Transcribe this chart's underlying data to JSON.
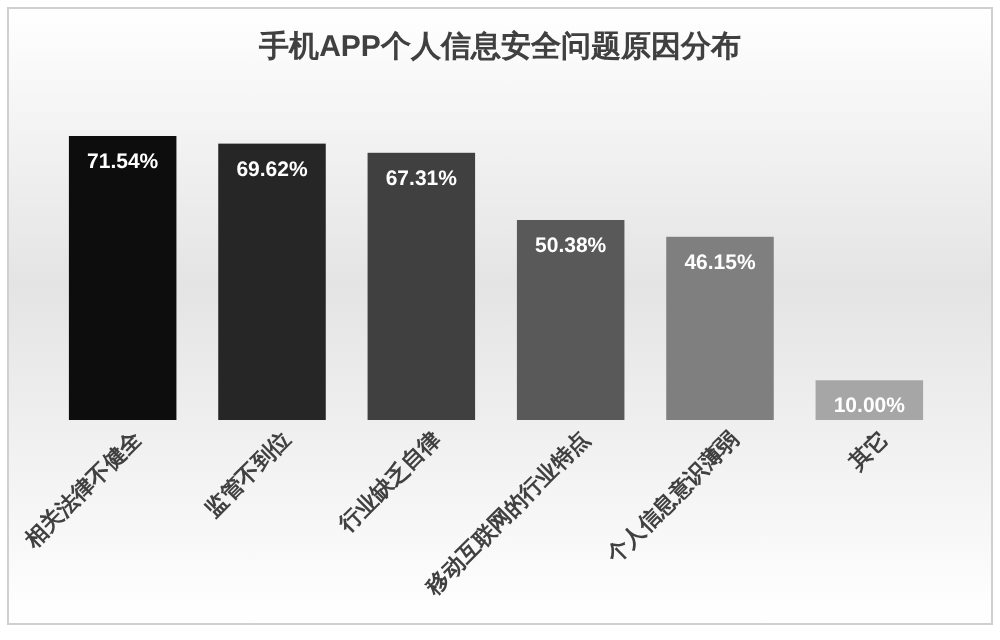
{
  "chart_data": {
    "type": "bar",
    "title": "手机APP个人信息安全问题原因分布",
    "categories": [
      "相关法律不健全",
      "监管不到位",
      "行业缺乏自律",
      "移动互联网的行业特点",
      "个人信息意识薄弱",
      "其它"
    ],
    "values": [
      71.54,
      69.62,
      67.31,
      50.38,
      46.15,
      10.0
    ],
    "value_labels": [
      "71.54%",
      "69.62%",
      "67.31%",
      "50.38%",
      "46.15%",
      "10.00%"
    ],
    "colors": [
      "#0d0d0d",
      "#262626",
      "#404040",
      "#595959",
      "#7f7f7f",
      "#a6a6a6"
    ]
  }
}
